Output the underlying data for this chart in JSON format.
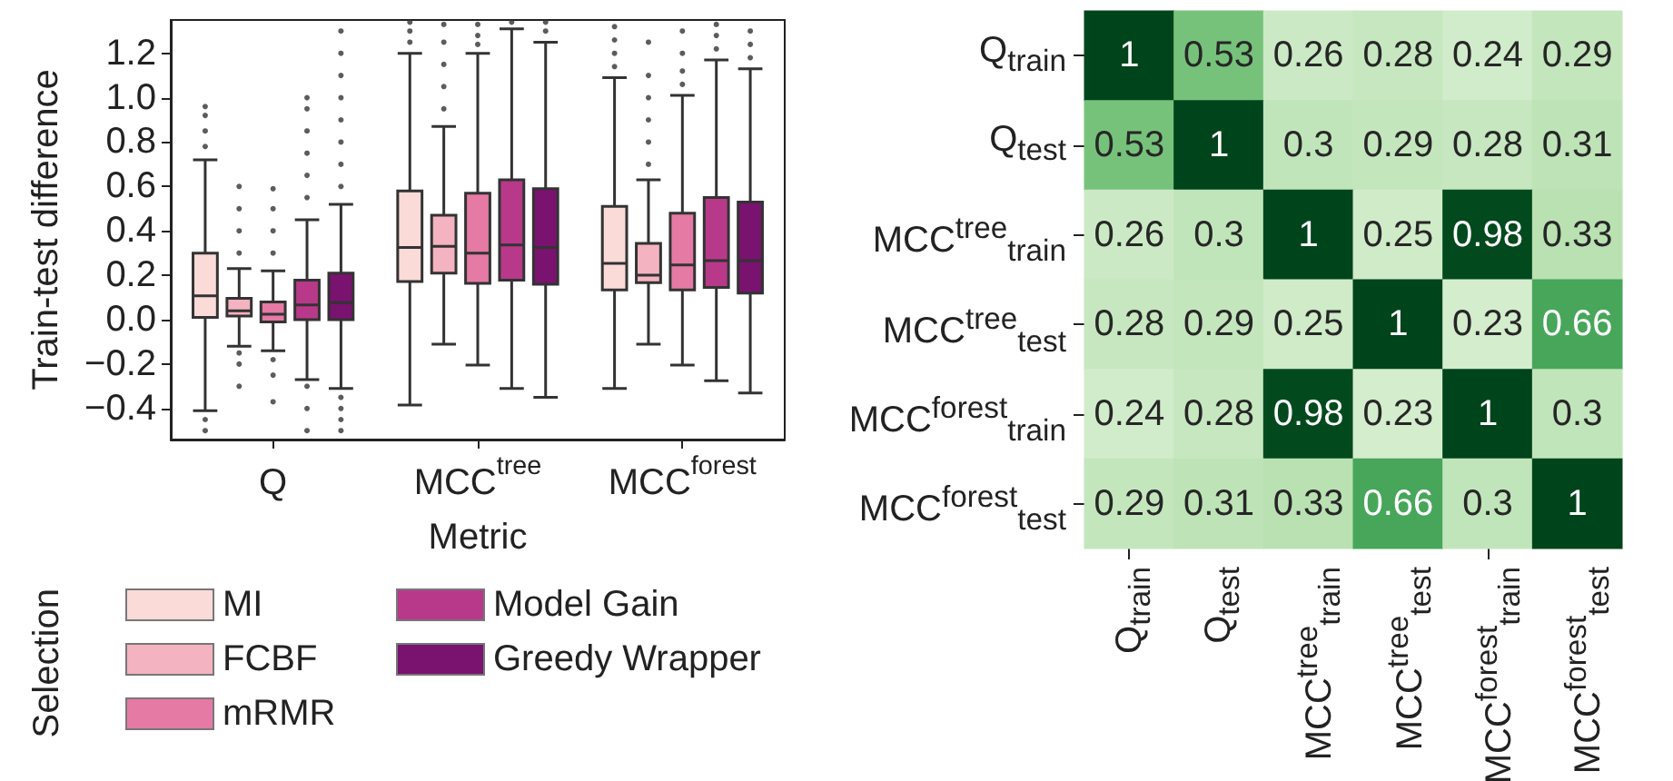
{
  "chart_data": [
    {
      "type": "box",
      "xlabel": "Metric",
      "ylabel": "Train-test difference",
      "legend": "bottom left",
      "legend_title": "Selection",
      "categories": [
        "Q",
        "MCC$^{tree}$",
        "MCC$^{forest}$"
      ],
      "ylim": [
        -0.54,
        1.35
      ],
      "yticks": [
        {
          "value": -0.4,
          "label": "−0.4"
        },
        {
          "value": -0.2,
          "label": "−0.2"
        },
        {
          "value": 0,
          "label": "0.0"
        },
        {
          "value": 0.2,
          "label": "0.2"
        },
        {
          "value": 0.4,
          "label": "0.4"
        },
        {
          "value": 0.6,
          "label": "0.6"
        },
        {
          "value": 0.8,
          "label": "0.8"
        },
        {
          "value": 1.0,
          "label": "1.0"
        },
        {
          "value": 1.2,
          "label": "1.2"
        }
      ],
      "series": [
        {
          "name": "MI",
          "color": "#fadbd8",
          "boxes": [
            {
              "low": -0.41,
              "q1": 0.01,
              "median": 0.107,
              "q3": 0.3,
              "high": 0.72,
              "outliers": [
                0.78,
                0.85,
                0.92,
                0.96,
                -0.45,
                -0.5
              ]
            },
            {
              "low": -0.385,
              "q1": 0.172,
              "median": 0.325,
              "q3": 0.58,
              "high": 1.2,
              "outliers": [
                1.25,
                1.3,
                1.34
              ]
            },
            {
              "low": -0.31,
              "q1": 0.134,
              "median": 0.254,
              "q3": 0.51,
              "high": 1.09,
              "outliers": [
                1.14,
                1.2,
                1.26,
                1.32
              ]
            }
          ]
        },
        {
          "name": "FCBF",
          "color": "#f3b3c0",
          "boxes": [
            {
              "low": -0.12,
              "q1": 0.016,
              "median": 0.04,
              "q3": 0.096,
              "high": 0.23,
              "outliers": [
                0.3,
                0.4,
                0.5,
                0.6,
                -0.15,
                -0.2,
                -0.3
              ]
            },
            {
              "low": -0.11,
              "q1": 0.21,
              "median": 0.33,
              "q3": 0.47,
              "high": 0.87,
              "outliers": [
                0.95,
                1.05,
                1.15,
                1.25,
                1.33
              ]
            },
            {
              "low": -0.11,
              "q1": 0.167,
              "median": 0.2,
              "q3": 0.344,
              "high": 0.63,
              "outliers": [
                0.7,
                0.8,
                0.9,
                1.0,
                1.1,
                1.25
              ]
            }
          ]
        },
        {
          "name": "mRMR",
          "color": "#e57aa5",
          "boxes": [
            {
              "low": -0.14,
              "q1": -0.01,
              "median": 0.025,
              "q3": 0.08,
              "high": 0.22,
              "outliers": [
                0.3,
                0.4,
                0.5,
                0.59,
                -0.18,
                -0.25,
                -0.37
              ]
            },
            {
              "low": -0.205,
              "q1": 0.164,
              "median": 0.3,
              "q3": 0.57,
              "high": 1.2,
              "outliers": [
                1.24,
                1.28,
                1.33
              ]
            },
            {
              "low": -0.205,
              "q1": 0.134,
              "median": 0.246,
              "q3": 0.48,
              "high": 1.01,
              "outliers": [
                1.06,
                1.12,
                1.2,
                1.3
              ]
            }
          ]
        },
        {
          "name": "Model Gain",
          "color": "#b8398a",
          "boxes": [
            {
              "low": -0.27,
              "q1": 0.0,
              "median": 0.066,
              "q3": 0.178,
              "high": 0.45,
              "outliers": [
                0.55,
                0.65,
                0.75,
                0.85,
                0.95,
                1.0,
                -0.3,
                -0.4,
                -0.5
              ]
            },
            {
              "low": -0.31,
              "q1": 0.178,
              "median": 0.336,
              "q3": 0.63,
              "high": 1.31,
              "outliers": [
                1.34
              ]
            },
            {
              "low": -0.275,
              "q1": 0.145,
              "median": 0.266,
              "q3": 0.55,
              "high": 1.17,
              "outliers": [
                1.22,
                1.28,
                1.33
              ]
            }
          ]
        },
        {
          "name": "Greedy Wrapper",
          "color": "#7a1270",
          "boxes": [
            {
              "low": -0.31,
              "q1": 0.0,
              "median": 0.077,
              "q3": 0.21,
              "high": 0.52,
              "outliers": [
                0.6,
                0.7,
                0.8,
                0.9,
                1.0,
                1.1,
                1.2,
                1.3,
                -0.35,
                -0.4,
                -0.45,
                -0.5
              ]
            },
            {
              "low": -0.35,
              "q1": 0.16,
              "median": 0.325,
              "q3": 0.59,
              "high": 1.25,
              "outliers": [
                1.3,
                1.34
              ]
            },
            {
              "low": -0.33,
              "q1": 0.12,
              "median": 0.266,
              "q3": 0.53,
              "high": 1.13,
              "outliers": [
                1.18,
                1.24,
                1.3
              ]
            }
          ]
        }
      ]
    },
    {
      "type": "heatmap",
      "data_labels": true,
      "categories": [
        "Q$_{train}$",
        "Q$_{test}$",
        "MCC$^{tree}$$_{train}$",
        "MCC$^{tree}$$_{test}$",
        "MCC$^{forest}$$_{train}$",
        "MCC$^{forest}$$_{test}$"
      ],
      "y_categories": [
        "Q$_{train}$",
        "Q$_{test}$",
        "MCC$^{tree}$$_{train}$",
        "MCC$^{tree}$$_{test}$",
        "MCC$^{forest}$$_{train}$",
        "MCC$^{forest}$$_{test}$"
      ],
      "cells": [
        [
          1,
          0.53,
          0.26,
          0.28,
          0.24,
          0.29
        ],
        [
          0.53,
          1,
          0.3,
          0.29,
          0.28,
          0.31
        ],
        [
          0.26,
          0.3,
          1,
          0.25,
          0.98,
          0.33
        ],
        [
          0.28,
          0.29,
          0.25,
          1,
          0.23,
          0.66
        ],
        [
          0.24,
          0.28,
          0.98,
          0.23,
          1,
          0.3
        ],
        [
          0.29,
          0.31,
          0.33,
          0.66,
          0.3,
          1
        ]
      ]
    }
  ]
}
